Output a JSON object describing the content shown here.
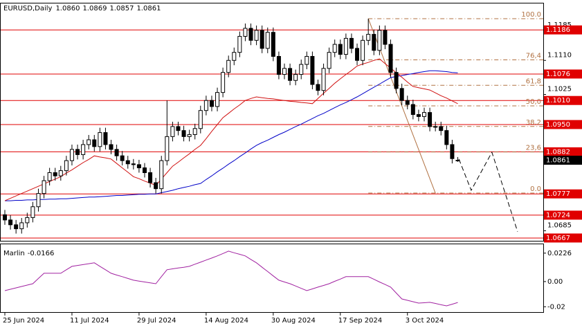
{
  "chart_data": [
    {
      "type": "candlestick",
      "title": "EURUSD,Daily",
      "ohlc_labels": [
        "1.0860",
        "1.0869",
        "1.0857",
        "1.0861"
      ],
      "categories": [
        "25 Jun 2024",
        null,
        null,
        null,
        null,
        null,
        null,
        null,
        null,
        null,
        null,
        null,
        "11 Jul 2024",
        null,
        null,
        null,
        null,
        null,
        null,
        null,
        null,
        null,
        null,
        null,
        "29 Jul 2024",
        null,
        null,
        null,
        null,
        null,
        null,
        null,
        null,
        null,
        null,
        null,
        "14 Aug 2024",
        null,
        null,
        null,
        null,
        null,
        null,
        null,
        null,
        null,
        null,
        null,
        "30 Aug 2024",
        null,
        null,
        null,
        null,
        null,
        null,
        null,
        null,
        null,
        null,
        null,
        "17 Sep 2024",
        null,
        null,
        null,
        null,
        null,
        null,
        null,
        null,
        null,
        null,
        null,
        "3 Oct 2024",
        null,
        null,
        null,
        null,
        null,
        null,
        null,
        null,
        null
      ],
      "open": [
        1.0725,
        1.0712,
        1.07,
        1.069,
        1.0705,
        1.0718,
        1.0745,
        1.0778,
        1.081,
        1.083,
        1.0822,
        1.0835,
        1.086,
        1.0888,
        1.0875,
        1.09,
        1.0912,
        1.0895,
        1.093,
        1.09,
        1.0888,
        1.0872,
        1.086,
        1.0852,
        1.085,
        1.0842,
        1.083,
        1.0805,
        1.079,
        1.086,
        1.092,
        1.0945,
        1.0935,
        1.092,
        1.0925,
        1.094,
        1.0985,
        1.101,
        1.0995,
        1.103,
        1.108,
        1.111,
        1.113,
        1.117,
        1.119,
        1.116,
        1.1185,
        1.114,
        1.118,
        1.112,
        1.1075,
        1.109,
        1.106,
        1.1075,
        1.11,
        1.112,
        1.105,
        1.1035,
        1.109,
        1.113,
        1.115,
        1.1125,
        1.1165,
        1.114,
        1.111,
        1.116,
        1.1175,
        1.1135,
        1.1185,
        1.115,
        1.108,
        1.104,
        1.101,
        1.1,
        1.0975,
        1.097,
        1.098,
        1.0945,
        1.0945,
        1.0935,
        1.09,
        1.086
      ],
      "high": [
        1.0737,
        1.0724,
        1.0712,
        1.0717,
        1.073,
        1.0757,
        1.079,
        1.0822,
        1.0842,
        1.0842,
        1.0847,
        1.0872,
        1.09,
        1.09,
        1.0912,
        1.0924,
        1.0924,
        1.0942,
        1.0942,
        1.0912,
        1.09,
        1.0884,
        1.0872,
        1.0864,
        1.0862,
        1.0854,
        1.0842,
        1.0817,
        1.0872,
        1.101,
        1.0957,
        1.0957,
        1.0947,
        1.0937,
        1.0952,
        1.0997,
        1.1022,
        1.1022,
        1.1042,
        1.1092,
        1.1122,
        1.1142,
        1.1182,
        1.1202,
        1.1202,
        1.1197,
        1.1197,
        1.1192,
        1.1192,
        1.1132,
        1.1102,
        1.1102,
        1.1087,
        1.1112,
        1.1132,
        1.1132,
        1.1062,
        1.1102,
        1.1142,
        1.1162,
        1.1162,
        1.1177,
        1.1177,
        1.1152,
        1.1172,
        1.1214,
        1.1187,
        1.1197,
        1.1197,
        1.1162,
        1.1092,
        1.1052,
        1.1022,
        1.1012,
        1.0987,
        1.0992,
        1.0992,
        1.0957,
        1.0957,
        1.0947,
        1.0912,
        1.0869
      ],
      "low": [
        1.07,
        1.0688,
        1.0678,
        1.0678,
        1.0693,
        1.0706,
        1.0733,
        1.0766,
        1.0798,
        1.081,
        1.081,
        1.0823,
        1.0848,
        1.0863,
        1.0863,
        1.0888,
        1.0883,
        1.0883,
        1.0888,
        1.0876,
        1.086,
        1.0848,
        1.084,
        1.0838,
        1.083,
        1.0818,
        1.0793,
        1.0778,
        1.0778,
        1.0848,
        1.0908,
        1.0923,
        1.0908,
        1.0908,
        1.0913,
        1.0928,
        1.0973,
        1.0983,
        1.0983,
        1.1018,
        1.1068,
        1.1098,
        1.1118,
        1.1158,
        1.1148,
        1.1148,
        1.1128,
        1.1128,
        1.1108,
        1.1063,
        1.1063,
        1.1048,
        1.1048,
        1.1063,
        1.1088,
        1.1038,
        1.1023,
        1.1023,
        1.1078,
        1.1118,
        1.1113,
        1.1113,
        1.1128,
        1.1098,
        1.1098,
        1.1148,
        1.1123,
        1.1123,
        1.1138,
        1.1068,
        1.1028,
        1.0998,
        1.0988,
        1.0963,
        1.0958,
        1.0958,
        1.0933,
        1.0933,
        1.0923,
        1.0888,
        1.0853,
        1.0857
      ],
      "close": [
        1.0712,
        1.07,
        1.069,
        1.0705,
        1.0718,
        1.0745,
        1.0778,
        1.081,
        1.083,
        1.0822,
        1.0835,
        1.086,
        1.0888,
        1.0875,
        1.09,
        1.0912,
        1.0895,
        1.093,
        1.09,
        1.0888,
        1.0872,
        1.086,
        1.0852,
        1.085,
        1.0842,
        1.083,
        1.0805,
        1.079,
        1.086,
        1.092,
        1.0945,
        1.0935,
        1.092,
        1.0925,
        1.094,
        1.0985,
        1.101,
        1.0995,
        1.103,
        1.108,
        1.111,
        1.113,
        1.117,
        1.119,
        1.116,
        1.1185,
        1.114,
        1.118,
        1.112,
        1.1075,
        1.109,
        1.106,
        1.1075,
        1.11,
        1.112,
        1.105,
        1.1035,
        1.109,
        1.113,
        1.115,
        1.1125,
        1.1165,
        1.114,
        1.111,
        1.116,
        1.1175,
        1.1135,
        1.1185,
        1.115,
        1.108,
        1.104,
        1.101,
        1.1,
        1.0975,
        1.097,
        1.098,
        1.0945,
        1.0945,
        1.0935,
        1.09,
        1.0865,
        1.0861
      ],
      "up_color": "#ffffff",
      "down_color": "#000000",
      "lines": [
        {
          "color": "#0000c8",
          "values": [
            1.076,
            1.076,
            1.0761,
            1.0761,
            1.0762,
            1.0762,
            1.0763,
            1.0763,
            1.0764,
            1.0764,
            1.0765,
            1.0765,
            1.0766,
            1.0767,
            1.0768,
            1.0769,
            1.0769,
            1.077,
            1.0771,
            1.0772,
            1.0773,
            1.0773,
            1.0774,
            1.0775,
            1.0776,
            1.0776,
            1.0777,
            1.0777,
            1.078,
            1.0783,
            1.0786,
            1.079,
            1.0793,
            1.0796,
            1.08,
            1.0803,
            1.0813,
            1.0822,
            1.0832,
            1.0841,
            1.0851,
            1.086,
            1.087,
            1.0879,
            1.0889,
            1.0898,
            1.0905,
            1.0911,
            1.0918,
            1.0925,
            1.0931,
            1.0938,
            1.0945,
            1.0951,
            1.0958,
            1.0965,
            1.0972,
            1.0978,
            1.0985,
            1.0992,
            1.0999,
            1.1005,
            1.1012,
            1.1019,
            1.1027,
            1.1035,
            1.1043,
            1.1051,
            1.1059,
            1.1067,
            1.107,
            1.1072,
            1.1075,
            1.1077,
            1.108,
            1.1082,
            1.1084,
            1.1084,
            1.1083,
            1.1082,
            1.108,
            1.1079
          ]
        },
        {
          "color": "#d01010",
          "values": [
            1.076,
            1.0766,
            1.0772,
            1.0778,
            1.0784,
            1.079,
            1.0796,
            1.0802,
            1.0808,
            1.0814,
            1.082,
            1.0829,
            1.0837,
            1.0846,
            1.0855,
            1.0863,
            1.0872,
            1.0869,
            1.0867,
            1.0864,
            1.0853,
            1.0842,
            1.0831,
            1.082,
            1.0815,
            1.0809,
            1.0804,
            1.0798,
            1.0814,
            1.083,
            1.0846,
            1.0856,
            1.0867,
            1.0877,
            1.0888,
            1.0898,
            1.0915,
            1.0933,
            1.095,
            1.0967,
            1.0978,
            1.0989,
            1.0999,
            1.101,
            1.1015,
            1.1019,
            1.1017,
            1.1015,
            1.1014,
            1.1012,
            1.101,
            1.1008,
            1.1007,
            1.1005,
            1.1004,
            1.1002,
            1.1015,
            1.1028,
            1.104,
            1.1053,
            1.1064,
            1.1075,
            1.1085,
            1.1096,
            1.1101,
            1.1105,
            1.111,
            1.1114,
            1.1102,
            1.1091,
            1.1079,
            1.1068,
            1.1056,
            1.1045,
            1.1042,
            1.1039,
            1.1036,
            1.1029,
            1.1022,
            1.1016,
            1.1009,
            1.1002
          ]
        }
      ],
      "ylim": [
        1.066,
        1.1252
      ],
      "yticks": [
        1.1185,
        {
          "value": 1.111,
          "label": "1.1110"
        },
        1.1025,
        1.0685
      ],
      "levels": [
        1.1186,
        1.1076,
        {
          "value": 1.101,
          "label": "1.1010"
        },
        {
          "value": 1.095,
          "label": "1.0950"
        },
        1.0882,
        1.0777,
        1.0724,
        1.0667
      ],
      "level_color": "#e00000",
      "fibonacci": {
        "x": [
          65,
          77
        ],
        "high": 1.1214,
        "low": 1.0779,
        "color": "#b07040",
        "levels": [
          {
            "value": 100,
            "label": "100.0"
          },
          {
            "value": 76.4,
            "label": "76,4"
          },
          {
            "value": 61.8,
            "label": "61,8"
          },
          {
            "value": 50,
            "label": "50,0"
          },
          {
            "value": 38.2,
            "label": "38,2"
          },
          {
            "value": 23.6,
            "label": "23,6"
          },
          {
            "value": 0,
            "label": "0.0"
          }
        ]
      },
      "forecast": {
        "x": [
          81.2,
          83.4,
          87.1,
          91.7
        ],
        "values": [
          1.0864,
          1.0786,
          1.0881,
          1.0683
        ]
      }
    },
    {
      "type": "line",
      "title": "Marlin",
      "color": "#a020a0",
      "values": [
        -0.0072,
        -0.0061,
        -0.005,
        -0.0039,
        -0.0028,
        -0.0017,
        0.0025,
        0.0066,
        0.0066,
        0.0066,
        0.0066,
        0.0094,
        0.0121,
        0.0128,
        0.0135,
        0.0142,
        0.0149,
        0.0121,
        0.0094,
        0.0066,
        0.0052,
        0.0039,
        0.0025,
        0.0011,
        0.0004,
        -0.0003,
        -0.001,
        -0.0017,
        0.0039,
        0.0094,
        0.0101,
        0.0108,
        0.0114,
        0.0121,
        0.0138,
        0.0154,
        0.0171,
        0.0187,
        0.0204,
        0.0223,
        0.0242,
        0.0229,
        0.0217,
        0.0204,
        0.0176,
        0.0149,
        0.0114,
        0.008,
        0.0045,
        0.0011,
        -0.0003,
        -0.0017,
        -0.0035,
        -0.0054,
        -0.0072,
        -0.0058,
        -0.0044,
        -0.0031,
        -0.0017,
        0.0002,
        0.002,
        0.0039,
        0.0039,
        0.0039,
        0.0039,
        0.0039,
        0.0018,
        -0.0003,
        -0.0023,
        -0.0044,
        -0.0091,
        -0.0138,
        -0.0149,
        -0.016,
        -0.0171,
        -0.0168,
        -0.0165,
        -0.0174,
        -0.0184,
        -0.0193,
        -0.018,
        -0.0166
      ],
      "ylim": [
        -0.0248,
        0.028
      ],
      "yticks": [
        0.0226,
        {
          "value": 0,
          "label": "0.00"
        },
        -0.02
      ]
    }
  ]
}
